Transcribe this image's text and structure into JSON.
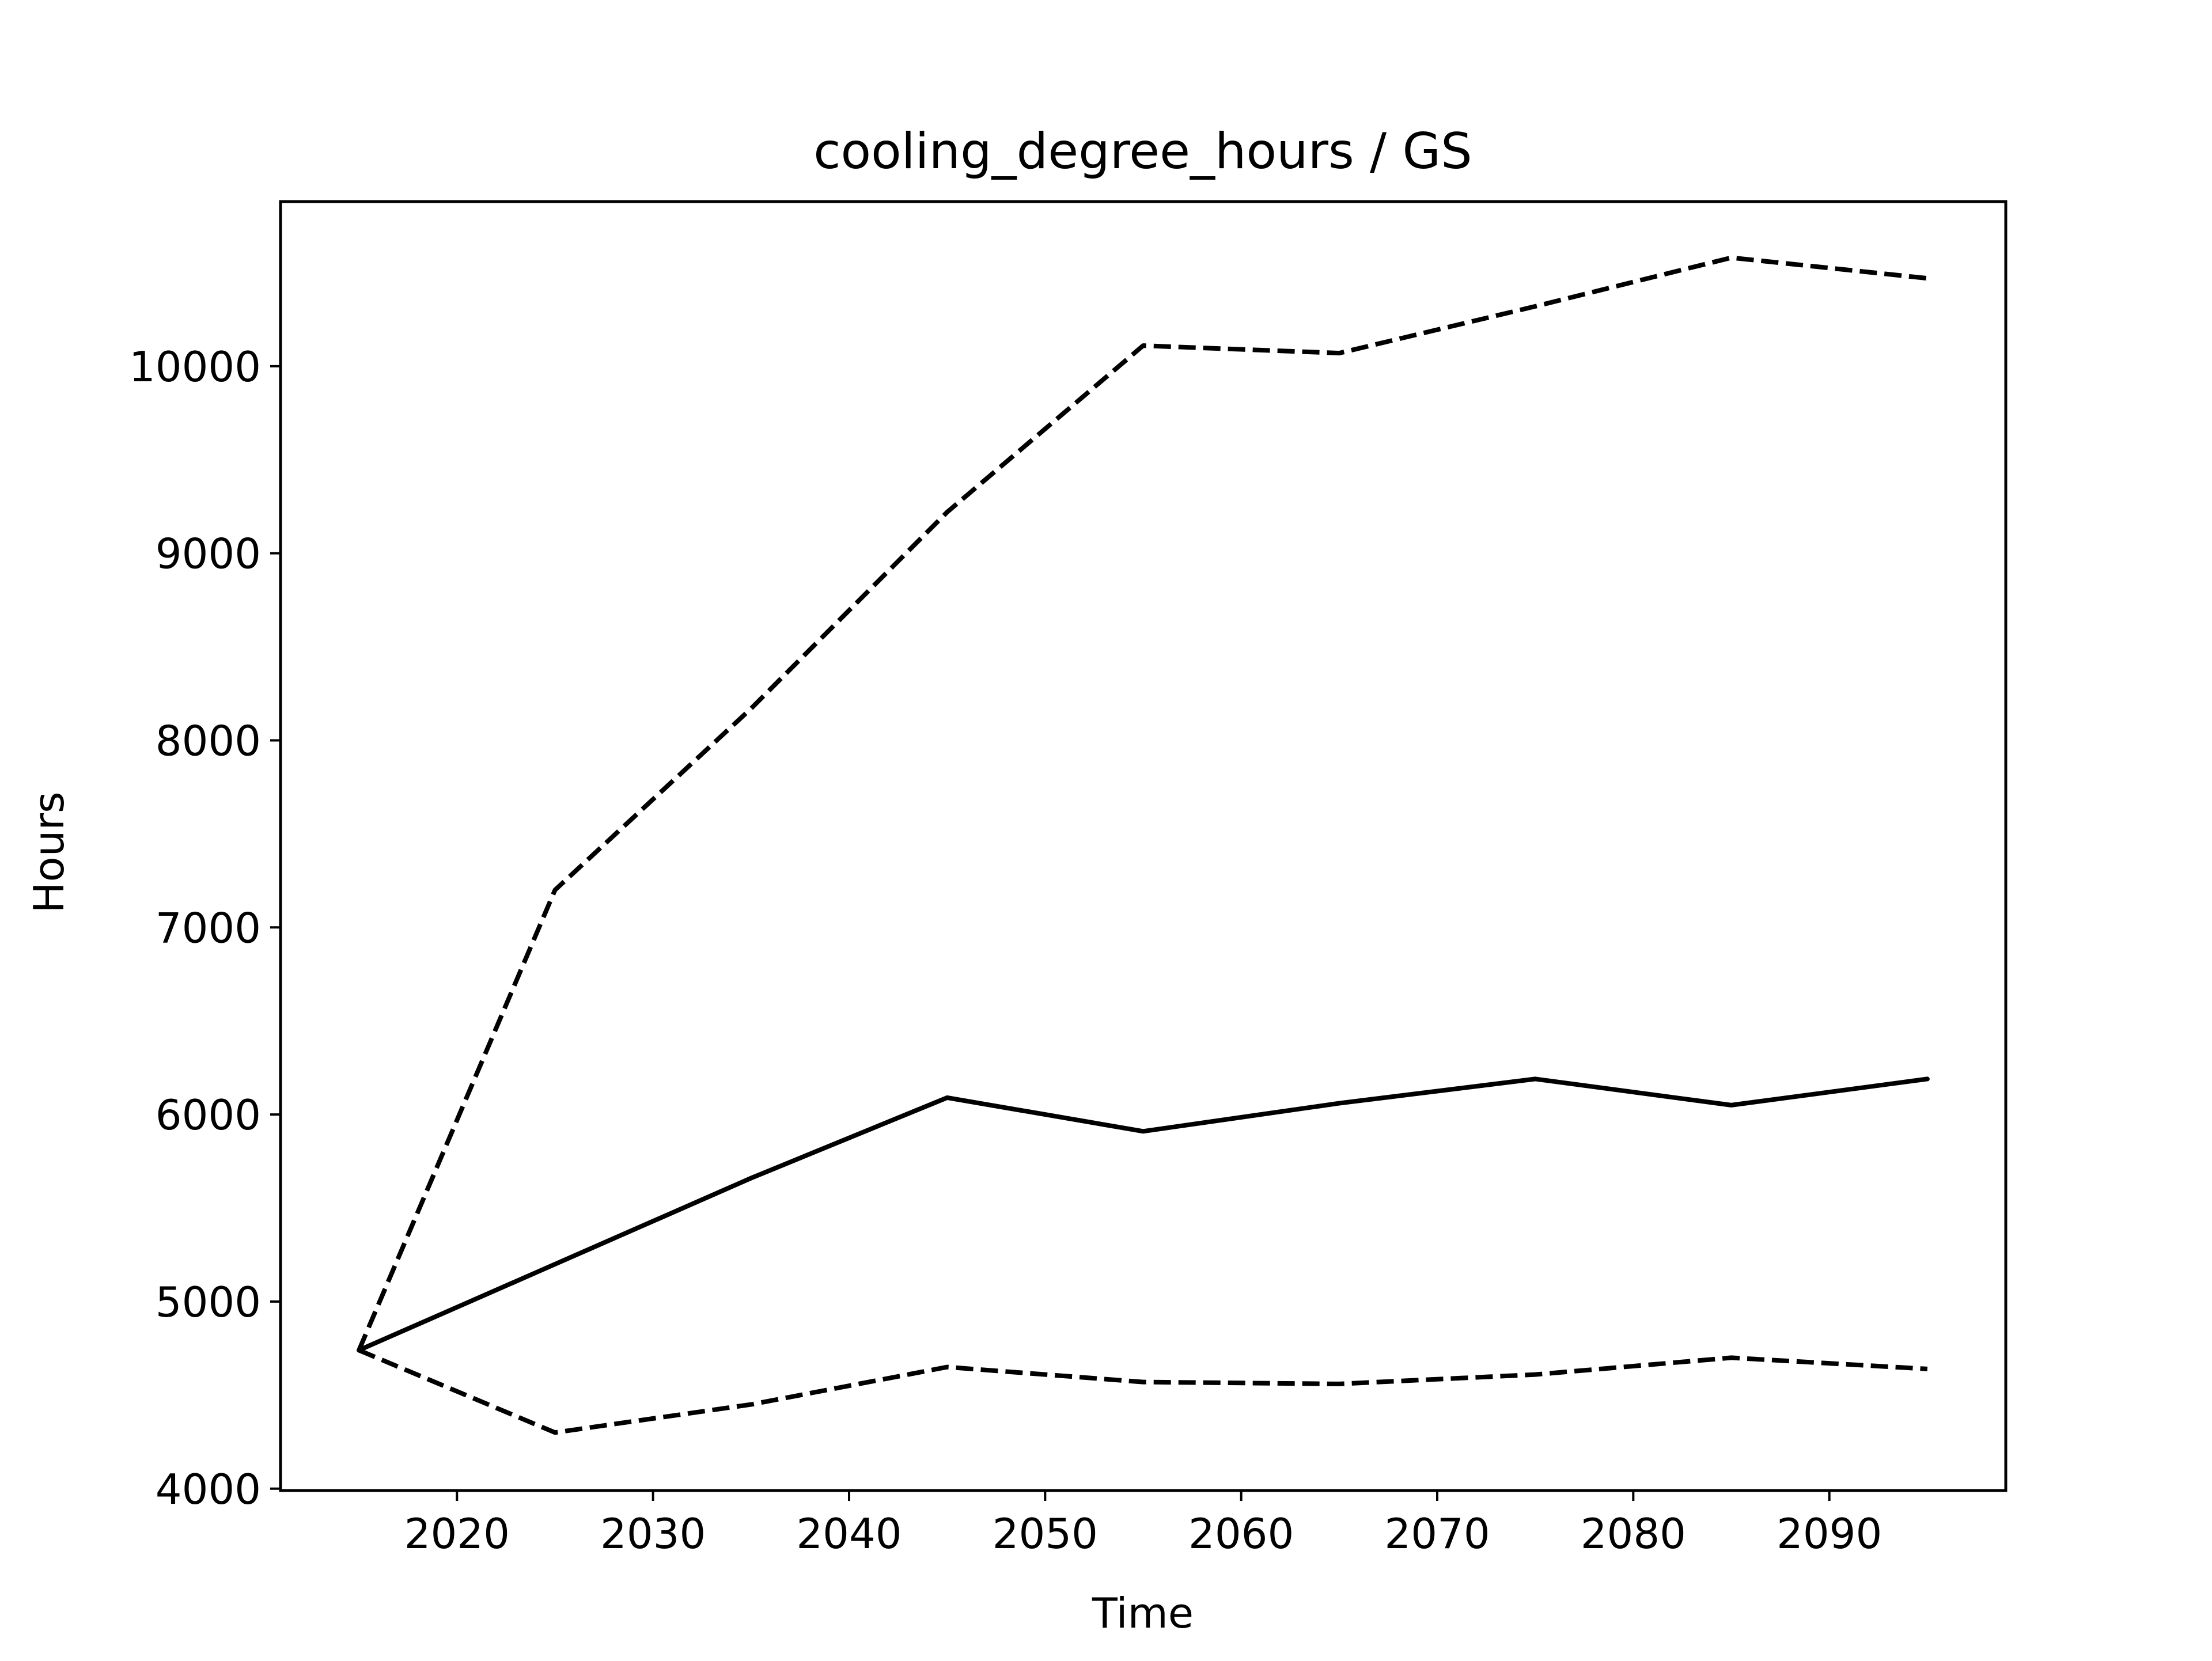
{
  "chart_data": {
    "type": "line",
    "title": "cooling_degree_hours / GS",
    "xlabel": "Time",
    "ylabel": "Hours",
    "x": [
      2015,
      2025,
      2035,
      2045,
      2055,
      2065,
      2075,
      2085,
      2095
    ],
    "xlim": [
      2011,
      2099
    ],
    "ylim": [
      3990,
      10880
    ],
    "xticks": [
      2020,
      2030,
      2040,
      2050,
      2060,
      2070,
      2080,
      2090
    ],
    "yticks": [
      4000,
      5000,
      6000,
      7000,
      8000,
      9000,
      10000
    ],
    "grid": false,
    "series": [
      {
        "style": "solid",
        "color": "#000000",
        "values": [
          4740,
          5200,
          5660,
          6090,
          5910,
          6060,
          6190,
          6050,
          6190
        ]
      },
      {
        "style": "dashed",
        "color": "#000000",
        "values": [
          4740,
          7200,
          8170,
          9220,
          10110,
          10070,
          10320,
          10580,
          10470
        ]
      },
      {
        "style": "dashed",
        "color": "#000000",
        "values": [
          4740,
          4300,
          4450,
          4650,
          4570,
          4560,
          4610,
          4700,
          4640
        ]
      }
    ]
  }
}
